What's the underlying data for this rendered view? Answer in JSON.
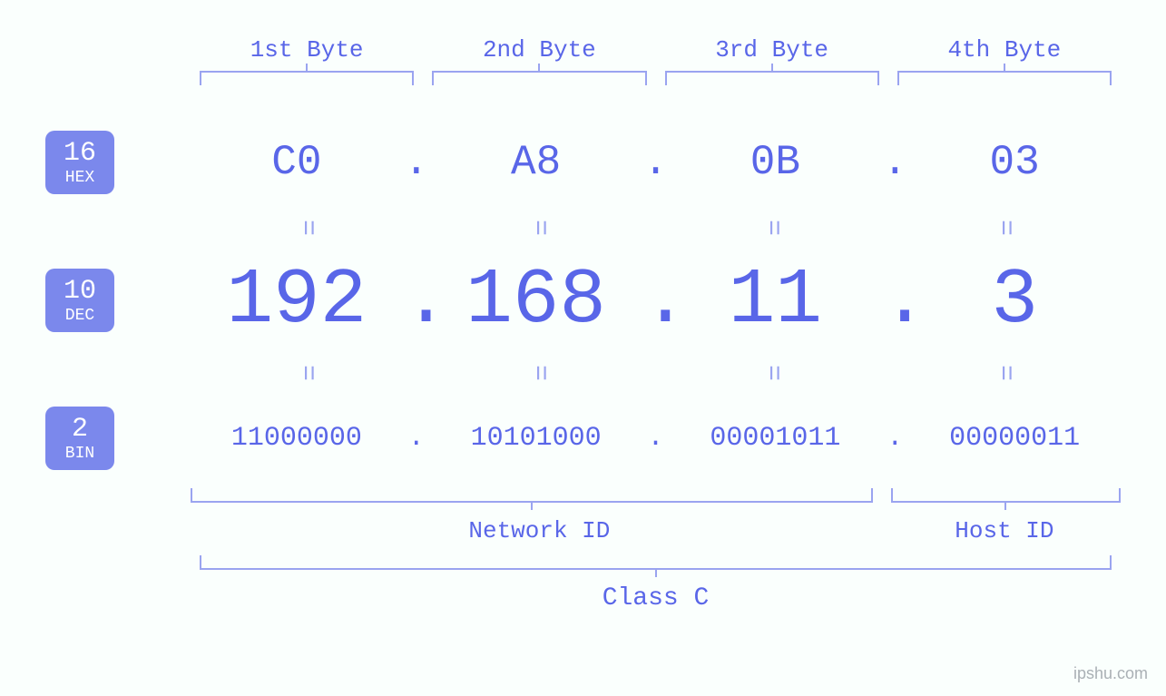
{
  "byte_headers": [
    "1st Byte",
    "2nd Byte",
    "3rd Byte",
    "4th Byte"
  ],
  "hex": {
    "badge_num": "16",
    "badge_label": "HEX",
    "values": [
      "C0",
      "A8",
      "0B",
      "03"
    ]
  },
  "dec": {
    "badge_num": "10",
    "badge_label": "DEC",
    "values": [
      "192",
      "168",
      "11",
      "3"
    ]
  },
  "bin": {
    "badge_num": "2",
    "badge_label": "BIN",
    "values": [
      "11000000",
      "10101000",
      "00001011",
      "00000011"
    ]
  },
  "separator": ".",
  "equals": "=",
  "network_label": "Network ID",
  "host_label": "Host ID",
  "class_label": "Class C",
  "watermark": "ipshu.com",
  "colors": {
    "background": "#fafffd",
    "primary": "#5966e8",
    "badge_bg": "#7b88ec",
    "badge_fg": "#ffffff",
    "light": "#9aa4f0",
    "watermark": "#aab0b5"
  },
  "fontsizes": {
    "byte_header": 26,
    "hex": 46,
    "dec": 86,
    "bin": 30,
    "badge_num": 30,
    "badge_label": 18,
    "bottom_label": 26,
    "class_label": 28,
    "equals": 30,
    "watermark": 18
  }
}
